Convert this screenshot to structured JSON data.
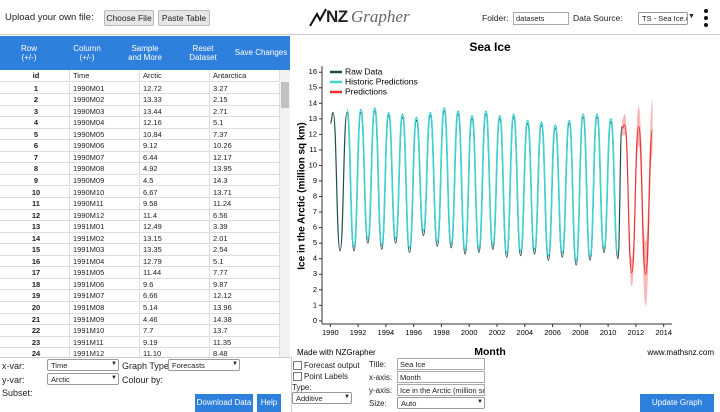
{
  "toolbar": {
    "upload_label": "Upload your own file:",
    "choose_file": "Choose File",
    "paste_table": "Paste Table",
    "logo_nz": "NZ",
    "logo_grapher": "Grapher",
    "folder_label": "Folder:",
    "folder_value": "datasets",
    "source_label": "Data Source:",
    "source_value": "TS - Sea Ice.c"
  },
  "table": {
    "buttons": [
      {
        "label": "Row",
        "sub": "(+/-)"
      },
      {
        "label": "Column",
        "sub": "(+/-)"
      },
      {
        "label": "Sample",
        "sub": "and More"
      },
      {
        "label": "Reset",
        "sub": "Dataset"
      },
      {
        "label": "Save Changes"
      }
    ],
    "columns": [
      "id",
      "Time",
      "Arctic",
      "Antarctica"
    ],
    "rows": [
      [
        "1",
        "1990M01",
        "12.72",
        "3.27"
      ],
      [
        "2",
        "1990M02",
        "13.33",
        "2.15"
      ],
      [
        "3",
        "1990M03",
        "13.44",
        "2.71"
      ],
      [
        "4",
        "1990M04",
        "12.16",
        "5.1"
      ],
      [
        "5",
        "1990M05",
        "10.84",
        "7.37"
      ],
      [
        "6",
        "1990M06",
        "9.12",
        "10.26"
      ],
      [
        "7",
        "1990M07",
        "6.44",
        "12.17"
      ],
      [
        "8",
        "1990M08",
        "4.92",
        "13.95"
      ],
      [
        "9",
        "1990M09",
        "4.5",
        "14.3"
      ],
      [
        "10",
        "1990M10",
        "6.67",
        "13.71"
      ],
      [
        "11",
        "1990M11",
        "9.58",
        "11.24"
      ],
      [
        "12",
        "1990M12",
        "11.4",
        "6.56"
      ],
      [
        "13",
        "1991M01",
        "12.49",
        "3.39"
      ],
      [
        "14",
        "1991M02",
        "13.15",
        "2.01"
      ],
      [
        "15",
        "1991M03",
        "13.35",
        "2.54"
      ],
      [
        "16",
        "1991M04",
        "12.79",
        "5.1"
      ],
      [
        "17",
        "1991M05",
        "11.44",
        "7.77"
      ],
      [
        "18",
        "1991M06",
        "9.6",
        "9.87"
      ],
      [
        "19",
        "1991M07",
        "6.66",
        "12.12"
      ],
      [
        "20",
        "1991M08",
        "5.14",
        "13.96"
      ],
      [
        "21",
        "1991M09",
        "4.46",
        "14.38"
      ],
      [
        "22",
        "1991M10",
        "7.7",
        "13.7"
      ],
      [
        "23",
        "1991M11",
        "9.19",
        "11.35"
      ],
      [
        "24",
        "1991M12",
        "11.10",
        "8.48"
      ]
    ]
  },
  "controls": {
    "xvar_label": "x-var:",
    "xvar": "Time",
    "graph_type_label": "Graph Type:",
    "graph_type": "Forecasts",
    "yvar_label": "y-var:",
    "yvar": "Arctic",
    "colour_by_label": "Colour by:",
    "subset_label": "Subset:",
    "download": "Download Data",
    "help": "Help",
    "forecast_output": "Forecast output",
    "point_labels": "Point Labels",
    "type_label": "Type:",
    "type": "Additive",
    "title_label": "Title:",
    "title": "Sea Ice",
    "xaxis_label": "x-axis:",
    "xaxis": "Month",
    "yaxis_label": "y-axis:",
    "yaxis": "Ice in the Arctic (million sq",
    "size_label": "Size:",
    "size": "Auto",
    "update": "Update Graph"
  },
  "chart_data": {
    "type": "line",
    "title": "Sea Ice",
    "x_label": "Month",
    "y_label": "Ice in the Arctic (million sq km)",
    "footer_left": "Made with NZGrapher",
    "footer_right": "www.mathsnz.com",
    "xlim": [
      1989.4,
      2014.6
    ],
    "ylim": [
      -0.2,
      16.4
    ],
    "xticks": [
      1990,
      1992,
      1994,
      1996,
      1998,
      2000,
      2002,
      2004,
      2006,
      2008,
      2010,
      2012,
      2014
    ],
    "yticks": [
      0,
      1,
      2,
      3,
      4,
      5,
      6,
      7,
      8,
      9,
      10,
      11,
      12,
      13,
      14,
      15,
      16
    ],
    "series": [
      {
        "name": "Raw Data",
        "color": "#1f4f4f",
        "x": [
          1990.0,
          1990.2,
          1990.7,
          1991.2,
          1991.7,
          1992.2,
          1992.7,
          1993.2,
          1993.7,
          1994.2,
          1994.7,
          1995.2,
          1995.7,
          1996.2,
          1996.7,
          1997.2,
          1997.7,
          1998.2,
          1998.7,
          1999.2,
          1999.7,
          2000.2,
          2000.7,
          2001.2,
          2001.7,
          2002.2,
          2002.7,
          2003.2,
          2003.7,
          2004.2,
          2004.7,
          2005.2,
          2005.7,
          2006.2,
          2006.7,
          2007.2,
          2007.7,
          2008.2,
          2008.7,
          2009.2,
          2009.7,
          2010.2,
          2010.7,
          2011.0
        ],
        "values": [
          12.7,
          13.4,
          4.5,
          13.4,
          4.5,
          13.4,
          5.0,
          13.5,
          4.6,
          13.2,
          5.0,
          13.1,
          4.4,
          12.9,
          5.5,
          13.2,
          4.8,
          13.5,
          4.7,
          13.3,
          4.3,
          13.0,
          4.4,
          13.3,
          4.6,
          13.0,
          4.1,
          13.1,
          4.2,
          12.7,
          4.3,
          12.6,
          3.9,
          12.4,
          4.1,
          12.7,
          3.6,
          13.1,
          3.9,
          13.1,
          4.4,
          12.8,
          4.0,
          12.5
        ]
      },
      {
        "name": "Historic Predictions",
        "color": "#3fd3d3",
        "x": [
          1991.2,
          1991.7,
          1992.2,
          1992.7,
          1993.2,
          1993.7,
          1994.2,
          1994.7,
          1995.2,
          1995.7,
          1996.2,
          1996.7,
          1997.2,
          1997.7,
          1998.2,
          1998.7,
          1999.2,
          1999.7,
          2000.2,
          2000.7,
          2001.2,
          2001.7,
          2002.2,
          2002.7,
          2003.2,
          2003.7,
          2004.2,
          2004.7,
          2005.2,
          2005.7,
          2006.2,
          2006.7,
          2007.2,
          2007.7,
          2008.2,
          2008.7,
          2009.2,
          2009.7,
          2010.2,
          2010.7
        ],
        "values": [
          13.6,
          4.8,
          13.6,
          5.3,
          13.7,
          4.9,
          13.4,
          5.3,
          13.3,
          4.7,
          13.1,
          5.8,
          13.4,
          5.1,
          13.7,
          5.0,
          13.5,
          4.6,
          13.2,
          4.7,
          13.5,
          4.9,
          13.2,
          4.4,
          13.3,
          4.5,
          12.9,
          4.6,
          12.8,
          4.2,
          12.6,
          4.4,
          12.9,
          3.9,
          13.3,
          4.2,
          13.3,
          4.7,
          13.0,
          4.3
        ]
      },
      {
        "name": "Predictions",
        "color": "#f03030",
        "band_color": "#f7b8b8",
        "x": [
          2011.0,
          2011.2,
          2011.7,
          2012.2,
          2012.7,
          2013.2
        ],
        "values": [
          12.4,
          12.6,
          3.1,
          12.5,
          3.0,
          12.3
        ],
        "lower": [
          11.9,
          12.0,
          2.2,
          11.3,
          1.0,
          10.7
        ],
        "upper": [
          12.9,
          13.3,
          4.0,
          13.8,
          5.1,
          14.2
        ]
      }
    ]
  }
}
